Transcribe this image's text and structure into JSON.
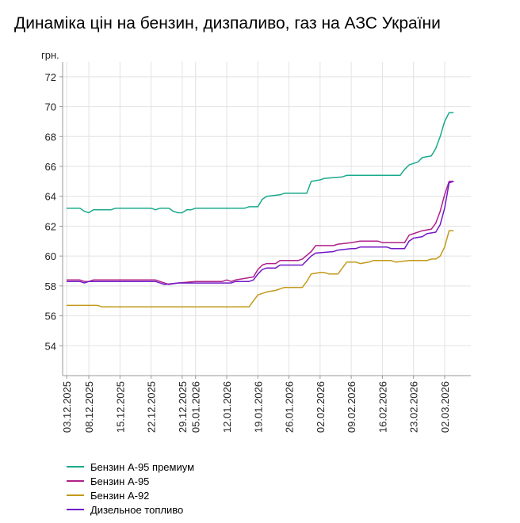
{
  "title": "Динаміка цін на бензин, дизпаливо, газ на АЗС України",
  "chart_data": {
    "type": "line",
    "title": "Динаміка цін на бензин, дизпаливо, газ на АЗС України",
    "ylabel": "грн.",
    "xlabel": "",
    "ylim": [
      52,
      73
    ],
    "yticks": [
      54,
      56,
      58,
      60,
      62,
      64,
      66,
      68,
      70,
      72
    ],
    "xlim": [
      0,
      90
    ],
    "grid": true,
    "legend_position": "bottom-left",
    "xticks": [
      {
        "x": 0,
        "label": "03.12.2025"
      },
      {
        "x": 5,
        "label": "08.12.2025"
      },
      {
        "x": 12,
        "label": "15.12.2025"
      },
      {
        "x": 19,
        "label": "22.12.2025"
      },
      {
        "x": 26,
        "label": "29.12.2025"
      },
      {
        "x": 29,
        "label": "05.01.2026"
      },
      {
        "x": 36,
        "label": "12.01.2026"
      },
      {
        "x": 43,
        "label": "19.01.2026"
      },
      {
        "x": 50,
        "label": "26.01.2026"
      },
      {
        "x": 57,
        "label": "02.02.2026"
      },
      {
        "x": 64,
        "label": "09.02.2026"
      },
      {
        "x": 71,
        "label": "16.02.2026"
      },
      {
        "x": 78,
        "label": "23.02.2026"
      },
      {
        "x": 85,
        "label": "02.03.2026"
      }
    ],
    "series": [
      {
        "name": "Бензин А-95 премиум",
        "color": "#1aaa8c",
        "points": [
          [
            0,
            63.2
          ],
          [
            3,
            63.2
          ],
          [
            4,
            63.0
          ],
          [
            5,
            62.9
          ],
          [
            6,
            63.1
          ],
          [
            10,
            63.1
          ],
          [
            11,
            63.2
          ],
          [
            19,
            63.2
          ],
          [
            20,
            63.1
          ],
          [
            21,
            63.2
          ],
          [
            23,
            63.2
          ],
          [
            24,
            63.0
          ],
          [
            25,
            62.9
          ],
          [
            26,
            62.9
          ],
          [
            27,
            63.1
          ],
          [
            28,
            63.1
          ],
          [
            29,
            63.2
          ],
          [
            40,
            63.2
          ],
          [
            41,
            63.3
          ],
          [
            43,
            63.3
          ],
          [
            44,
            63.8
          ],
          [
            45,
            64.0
          ],
          [
            48,
            64.1
          ],
          [
            49,
            64.2
          ],
          [
            54,
            64.2
          ],
          [
            55,
            65.0
          ],
          [
            57,
            65.1
          ],
          [
            58,
            65.2
          ],
          [
            62,
            65.3
          ],
          [
            63,
            65.4
          ],
          [
            75,
            65.4
          ],
          [
            76,
            65.8
          ],
          [
            77,
            66.1
          ],
          [
            79,
            66.3
          ],
          [
            80,
            66.6
          ],
          [
            82,
            66.7
          ],
          [
            83,
            67.2
          ],
          [
            84,
            68.0
          ],
          [
            85,
            69.0
          ],
          [
            86,
            69.6
          ],
          [
            87,
            69.6
          ]
        ]
      },
      {
        "name": "Бензин А-95",
        "color": "#b0208a",
        "points": [
          [
            0,
            58.4
          ],
          [
            3,
            58.4
          ],
          [
            4,
            58.3
          ],
          [
            5,
            58.3
          ],
          [
            6,
            58.4
          ],
          [
            20,
            58.4
          ],
          [
            21,
            58.3
          ],
          [
            22,
            58.2
          ],
          [
            23,
            58.1
          ],
          [
            25,
            58.2
          ],
          [
            29,
            58.3
          ],
          [
            35,
            58.3
          ],
          [
            36,
            58.4
          ],
          [
            37,
            58.3
          ],
          [
            38,
            58.4
          ],
          [
            40,
            58.5
          ],
          [
            42,
            58.6
          ],
          [
            43,
            59.1
          ],
          [
            44,
            59.4
          ],
          [
            45,
            59.5
          ],
          [
            47,
            59.5
          ],
          [
            48,
            59.7
          ],
          [
            52,
            59.7
          ],
          [
            53,
            59.8
          ],
          [
            55,
            60.3
          ],
          [
            56,
            60.7
          ],
          [
            60,
            60.7
          ],
          [
            61,
            60.8
          ],
          [
            64,
            60.9
          ],
          [
            66,
            61.0
          ],
          [
            70,
            61.0
          ],
          [
            71,
            60.9
          ],
          [
            76,
            60.9
          ],
          [
            77,
            61.4
          ],
          [
            78,
            61.5
          ],
          [
            80,
            61.7
          ],
          [
            82,
            61.8
          ],
          [
            83,
            62.2
          ],
          [
            84,
            63.0
          ],
          [
            85,
            64.1
          ],
          [
            86,
            65.0
          ],
          [
            87,
            65.0
          ]
        ]
      },
      {
        "name": "Бензин А-92",
        "color": "#c29a17",
        "points": [
          [
            0,
            56.7
          ],
          [
            7,
            56.7
          ],
          [
            8,
            56.6
          ],
          [
            9,
            56.6
          ],
          [
            41,
            56.6
          ],
          [
            42,
            57.0
          ],
          [
            43,
            57.4
          ],
          [
            44,
            57.5
          ],
          [
            45,
            57.6
          ],
          [
            47,
            57.7
          ],
          [
            48,
            57.8
          ],
          [
            49,
            57.9
          ],
          [
            53,
            57.9
          ],
          [
            54,
            58.3
          ],
          [
            55,
            58.8
          ],
          [
            57,
            58.9
          ],
          [
            58,
            58.9
          ],
          [
            59,
            58.8
          ],
          [
            61,
            58.8
          ],
          [
            62,
            59.2
          ],
          [
            63,
            59.6
          ],
          [
            65,
            59.6
          ],
          [
            66,
            59.5
          ],
          [
            68,
            59.6
          ],
          [
            69,
            59.7
          ],
          [
            73,
            59.7
          ],
          [
            74,
            59.6
          ],
          [
            77,
            59.7
          ],
          [
            81,
            59.7
          ],
          [
            82,
            59.8
          ],
          [
            83,
            59.8
          ],
          [
            84,
            60.0
          ],
          [
            85,
            60.6
          ],
          [
            86,
            61.7
          ],
          [
            87,
            61.7
          ]
        ]
      },
      {
        "name": "Дизельное топливо",
        "color": "#7318c8",
        "points": [
          [
            0,
            58.3
          ],
          [
            3,
            58.3
          ],
          [
            4,
            58.2
          ],
          [
            5,
            58.3
          ],
          [
            6,
            58.3
          ],
          [
            20,
            58.3
          ],
          [
            21,
            58.2
          ],
          [
            22,
            58.1
          ],
          [
            25,
            58.2
          ],
          [
            29,
            58.2
          ],
          [
            37,
            58.2
          ],
          [
            38,
            58.3
          ],
          [
            41,
            58.3
          ],
          [
            42,
            58.4
          ],
          [
            43,
            58.8
          ],
          [
            44,
            59.1
          ],
          [
            45,
            59.2
          ],
          [
            47,
            59.2
          ],
          [
            48,
            59.4
          ],
          [
            53,
            59.4
          ],
          [
            54,
            59.7
          ],
          [
            55,
            60.0
          ],
          [
            56,
            60.2
          ],
          [
            60,
            60.3
          ],
          [
            61,
            60.4
          ],
          [
            64,
            60.5
          ],
          [
            65,
            60.5
          ],
          [
            66,
            60.6
          ],
          [
            70,
            60.6
          ],
          [
            71,
            60.6
          ],
          [
            72,
            60.6
          ],
          [
            73,
            60.5
          ],
          [
            76,
            60.5
          ],
          [
            77,
            61.0
          ],
          [
            78,
            61.2
          ],
          [
            80,
            61.3
          ],
          [
            81,
            61.5
          ],
          [
            83,
            61.6
          ],
          [
            84,
            62.1
          ],
          [
            85,
            63.2
          ],
          [
            86,
            64.9
          ],
          [
            87,
            65.0
          ]
        ]
      }
    ]
  }
}
